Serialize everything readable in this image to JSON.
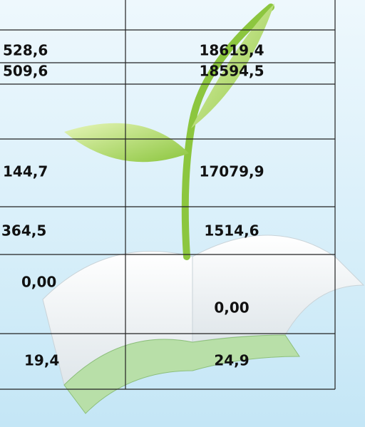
{
  "table": {
    "rows": [
      [
        "528,6",
        "18619,4"
      ],
      [
        "509,6",
        "18594,5"
      ],
      [
        "144,7",
        "17079,9"
      ],
      [
        "364,5",
        "1514,6"
      ],
      [
        "0,00",
        "0,00"
      ],
      [
        "19,4",
        "24,9"
      ]
    ]
  }
}
